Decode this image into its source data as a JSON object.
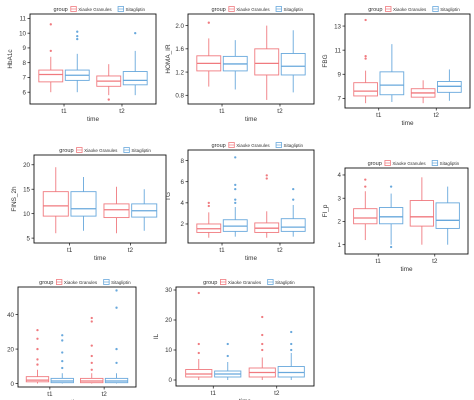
{
  "colors": {
    "group_a": "#f07a7f",
    "group_b": "#68a8dc",
    "frame": "#111111",
    "tick": "#333333"
  },
  "legend": {
    "title": "group",
    "entries": [
      "Xiaoke Granules",
      "Sitagliptin"
    ]
  },
  "chart_data": [
    {
      "type": "box",
      "ylabel": "HbA1c",
      "xlabel": "time",
      "categories": [
        "t1",
        "t2"
      ],
      "ylim": [
        5.2,
        11.3
      ],
      "yticks": [
        6,
        7,
        8,
        9,
        10,
        11
      ],
      "ytick_labels": [
        "6",
        "7",
        "8",
        "9",
        "10",
        "11"
      ],
      "legend_position": "top",
      "series": [
        {
          "name": "Xiaoke Granules",
          "boxes": [
            {
              "q1": 6.7,
              "median": 7.2,
              "q3": 7.5,
              "whisker_low": 6.0,
              "whisker_high": 8.4,
              "outliers": [
                8.8,
                10.6
              ]
            },
            {
              "q1": 6.4,
              "median": 6.75,
              "q3": 7.1,
              "whisker_low": 5.8,
              "whisker_high": 7.9,
              "outliers": [
                5.5
              ]
            }
          ]
        },
        {
          "name": "Sitagliptin",
          "boxes": [
            {
              "q1": 6.8,
              "median": 7.15,
              "q3": 7.5,
              "whisker_low": 6.0,
              "whisker_high": 8.6,
              "outliers": [
                9.6,
                9.8,
                10.1
              ]
            },
            {
              "q1": 6.5,
              "median": 6.8,
              "q3": 7.4,
              "whisker_low": 5.8,
              "whisker_high": 8.8,
              "outliers": [
                10.0
              ]
            }
          ]
        }
      ]
    },
    {
      "type": "box",
      "ylabel": "HOMA_IR",
      "xlabel": "time",
      "categories": [
        "t1",
        "t2"
      ],
      "ylim": [
        0.65,
        2.2
      ],
      "yticks": [
        0.8,
        1.2,
        1.6,
        2.0
      ],
      "ytick_labels": [
        "0.8",
        "1.2",
        "1.6",
        "2.0"
      ],
      "legend_position": "top",
      "series": [
        {
          "name": "Xiaoke Granules",
          "boxes": [
            {
              "q1": 1.22,
              "median": 1.35,
              "q3": 1.48,
              "whisker_low": 0.95,
              "whisker_high": 1.78,
              "outliers": [
                2.05
              ]
            },
            {
              "q1": 1.15,
              "median": 1.35,
              "q3": 1.6,
              "whisker_low": 0.72,
              "whisker_high": 2.0,
              "outliers": []
            }
          ]
        },
        {
          "name": "Sitagliptin",
          "boxes": [
            {
              "q1": 1.22,
              "median": 1.34,
              "q3": 1.47,
              "whisker_low": 0.9,
              "whisker_high": 1.75,
              "outliers": []
            },
            {
              "q1": 1.15,
              "median": 1.3,
              "q3": 1.52,
              "whisker_low": 0.85,
              "whisker_high": 1.92,
              "outliers": []
            }
          ]
        }
      ]
    },
    {
      "type": "box",
      "ylabel": "FBG",
      "xlabel": "time",
      "categories": [
        "t1",
        "t2"
      ],
      "ylim": [
        6.2,
        14.0
      ],
      "yticks": [
        7,
        9,
        11,
        13
      ],
      "ytick_labels": [
        "7",
        "9",
        "11",
        "13"
      ],
      "legend_position": "top",
      "series": [
        {
          "name": "Xiaoke Granules",
          "boxes": [
            {
              "q1": 7.2,
              "median": 7.6,
              "q3": 8.3,
              "whisker_low": 6.6,
              "whisker_high": 9.3,
              "outliers": [
                10.3,
                10.5,
                13.5
              ]
            },
            {
              "q1": 7.1,
              "median": 7.45,
              "q3": 7.8,
              "whisker_low": 6.6,
              "whisker_high": 8.5,
              "outliers": []
            }
          ]
        },
        {
          "name": "Sitagliptin",
          "boxes": [
            {
              "q1": 7.3,
              "median": 8.1,
              "q3": 9.2,
              "whisker_low": 6.7,
              "whisker_high": 11.5,
              "outliers": []
            },
            {
              "q1": 7.5,
              "median": 8.0,
              "q3": 8.4,
              "whisker_low": 6.8,
              "whisker_high": 9.4,
              "outliers": []
            }
          ]
        }
      ]
    },
    {
      "type": "box",
      "ylabel": "FINS_2h",
      "xlabel": "time",
      "categories": [
        "t1",
        "t2"
      ],
      "ylim": [
        4,
        22
      ],
      "yticks": [
        5,
        10,
        15,
        20
      ],
      "ytick_labels": [
        "5",
        "10",
        "15",
        "20"
      ],
      "legend_position": "top",
      "series": [
        {
          "name": "Xiaoke Granules",
          "boxes": [
            {
              "q1": 9.5,
              "median": 11.6,
              "q3": 14.5,
              "whisker_low": 6.0,
              "whisker_high": 19.5,
              "outliers": []
            },
            {
              "q1": 9.2,
              "median": 10.8,
              "q3": 12.0,
              "whisker_low": 6.0,
              "whisker_high": 15.5,
              "outliers": []
            }
          ]
        },
        {
          "name": "Sitagliptin",
          "boxes": [
            {
              "q1": 9.5,
              "median": 11.0,
              "q3": 14.5,
              "whisker_low": 6.5,
              "whisker_high": 17.5,
              "outliers": []
            },
            {
              "q1": 9.3,
              "median": 10.6,
              "q3": 12.0,
              "whisker_low": 6.5,
              "whisker_high": 15.0,
              "outliers": []
            }
          ]
        }
      ]
    },
    {
      "type": "box",
      "ylabel": "TG",
      "xlabel": "time",
      "categories": [
        "t1",
        "t2"
      ],
      "ylim": [
        0.2,
        9.0
      ],
      "yticks": [
        2,
        4,
        6,
        8
      ],
      "ytick_labels": [
        "2",
        "4",
        "6",
        "8"
      ],
      "legend_position": "top",
      "series": [
        {
          "name": "Xiaoke Granules",
          "boxes": [
            {
              "q1": 1.2,
              "median": 1.55,
              "q3": 2.0,
              "whisker_low": 0.7,
              "whisker_high": 3.1,
              "outliers": [
                3.7,
                4.0
              ]
            },
            {
              "q1": 1.2,
              "median": 1.6,
              "q3": 2.1,
              "whisker_low": 0.7,
              "whisker_high": 3.2,
              "outliers": [
                6.3,
                6.6
              ]
            }
          ]
        },
        {
          "name": "Sitagliptin",
          "boxes": [
            {
              "q1": 1.3,
              "median": 1.8,
              "q3": 2.4,
              "whisker_low": 0.8,
              "whisker_high": 3.6,
              "outliers": [
                4.0,
                4.3,
                5.3,
                5.7,
                8.3
              ]
            },
            {
              "q1": 1.3,
              "median": 1.7,
              "q3": 2.5,
              "whisker_low": 0.8,
              "whisker_high": 3.8,
              "outliers": [
                4.3,
                5.3
              ]
            }
          ]
        }
      ]
    },
    {
      "type": "box",
      "ylabel": "FI_p",
      "xlabel": "time",
      "categories": [
        "t1",
        "t2"
      ],
      "ylim": [
        0.6,
        4.3
      ],
      "yticks": [
        1,
        2,
        3,
        4
      ],
      "ytick_labels": [
        "1",
        "2",
        "3",
        "4"
      ],
      "legend_position": "top",
      "series": [
        {
          "name": "Xiaoke Granules",
          "boxes": [
            {
              "q1": 1.9,
              "median": 2.15,
              "q3": 2.55,
              "whisker_low": 1.2,
              "whisker_high": 3.3,
              "outliers": [
                3.5,
                3.8
              ]
            },
            {
              "q1": 1.8,
              "median": 2.2,
              "q3": 2.9,
              "whisker_low": 1.0,
              "whisker_high": 3.9,
              "outliers": []
            }
          ]
        },
        {
          "name": "Sitagliptin",
          "boxes": [
            {
              "q1": 1.9,
              "median": 2.2,
              "q3": 2.6,
              "whisker_low": 1.0,
              "whisker_high": 3.2,
              "outliers": [
                0.9,
                3.5
              ]
            },
            {
              "q1": 1.7,
              "median": 2.05,
              "q3": 2.8,
              "whisker_low": 1.0,
              "whisker_high": 3.5,
              "outliers": []
            }
          ]
        }
      ]
    },
    {
      "type": "box",
      "ylabel": "MALB",
      "xlabel": "time",
      "categories": [
        "t1",
        "t2"
      ],
      "ylim": [
        -2,
        56
      ],
      "yticks": [
        0,
        20,
        40
      ],
      "ytick_labels": [
        "0",
        "20",
        "40"
      ],
      "legend_position": "top",
      "series": [
        {
          "name": "Xiaoke Granules",
          "boxes": [
            {
              "q1": 1.0,
              "median": 2.0,
              "q3": 4.0,
              "whisker_low": 0.0,
              "whisker_high": 8.0,
              "outliers": [
                11,
                14,
                20,
                26,
                31
              ]
            },
            {
              "q1": 0.5,
              "median": 1.5,
              "q3": 3.0,
              "whisker_low": 0.0,
              "whisker_high": 6.0,
              "outliers": [
                8,
                12,
                16,
                22,
                36,
                38
              ]
            }
          ]
        },
        {
          "name": "Sitagliptin",
          "boxes": [
            {
              "q1": 0.5,
              "median": 1.5,
              "q3": 3.0,
              "whisker_low": 0.0,
              "whisker_high": 6.0,
              "outliers": [
                9,
                13,
                18,
                25,
                28
              ]
            },
            {
              "q1": 0.5,
              "median": 1.5,
              "q3": 3.0,
              "whisker_low": 0.0,
              "whisker_high": 6.0,
              "outliers": [
                12,
                20,
                44,
                54
              ]
            }
          ]
        }
      ]
    },
    {
      "type": "box",
      "ylabel": "IL",
      "xlabel": "time",
      "categories": [
        "t1",
        "t2"
      ],
      "ylim": [
        -2,
        31
      ],
      "yticks": [
        0,
        10,
        20,
        30
      ],
      "ytick_labels": [
        "0",
        "10",
        "20",
        "30"
      ],
      "legend_position": "top",
      "series": [
        {
          "name": "Xiaoke Granules",
          "boxes": [
            {
              "q1": 1.0,
              "median": 2.0,
              "q3": 3.5,
              "whisker_low": 0.0,
              "whisker_high": 7.0,
              "outliers": [
                9,
                12,
                29
              ]
            },
            {
              "q1": 1.0,
              "median": 2.5,
              "q3": 4.0,
              "whisker_low": 0.0,
              "whisker_high": 7.5,
              "outliers": [
                10,
                12,
                15,
                21
              ]
            }
          ]
        },
        {
          "name": "Sitagliptin",
          "boxes": [
            {
              "q1": 1.0,
              "median": 2.0,
              "q3": 3.0,
              "whisker_low": 0.0,
              "whisker_high": 6.0,
              "outliers": [
                8,
                12
              ]
            },
            {
              "q1": 1.0,
              "median": 2.5,
              "q3": 4.5,
              "whisker_low": 0.0,
              "whisker_high": 9.0,
              "outliers": [
                10,
                12,
                16
              ]
            }
          ]
        }
      ]
    }
  ]
}
